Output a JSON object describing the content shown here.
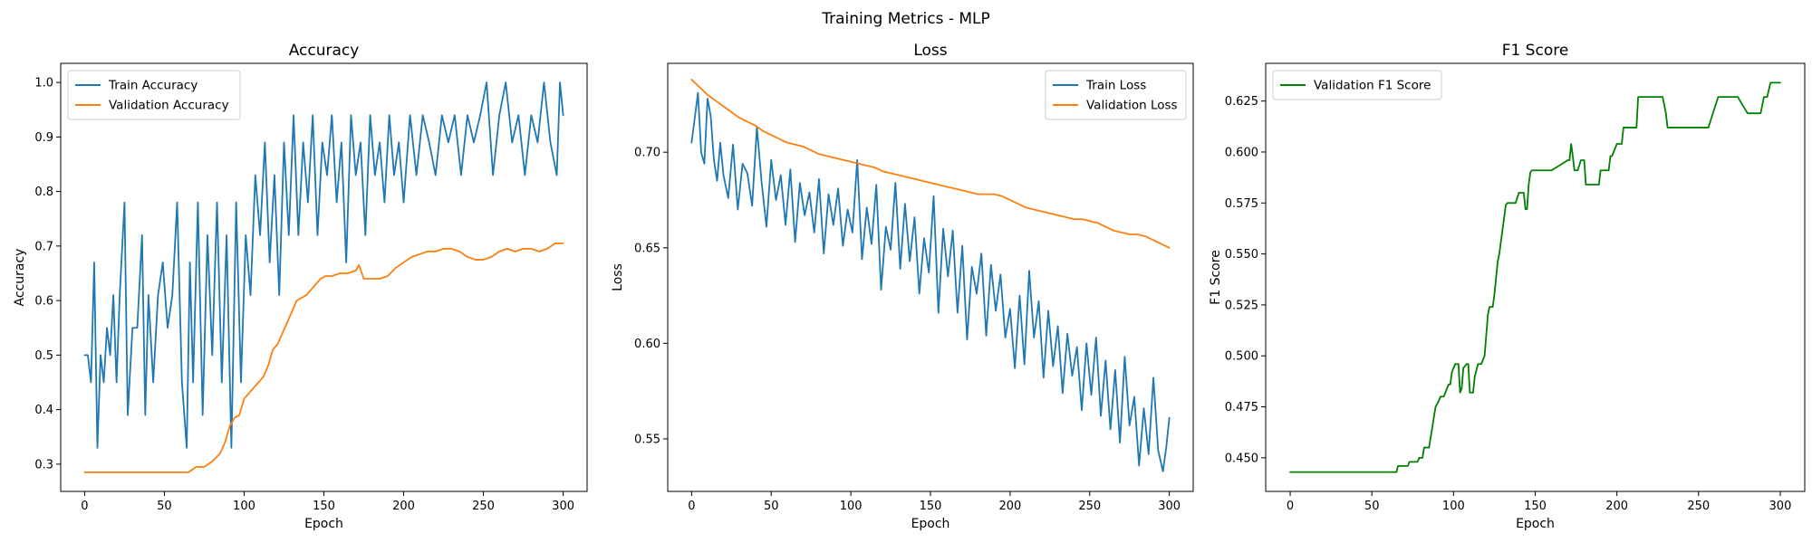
{
  "figure": {
    "suptitle": "Training Metrics - MLP"
  },
  "chart_data": [
    {
      "type": "line",
      "title": "Accuracy",
      "xlabel": "Epoch",
      "ylabel": "Accuracy",
      "xlim": [
        -15,
        315
      ],
      "ylim": [
        0.25,
        1.035
      ],
      "xticks": [
        0,
        50,
        100,
        150,
        200,
        250,
        300
      ],
      "yticks": [
        0.3,
        0.4,
        0.5,
        0.6,
        0.7,
        0.8,
        0.9,
        1.0
      ],
      "ytick_labels": [
        "0.3",
        "0.4",
        "0.5",
        "0.6",
        "0.7",
        "0.8",
        "0.9",
        "1.0"
      ],
      "legend_loc": "upper left",
      "series": [
        {
          "name": "Train Accuracy",
          "color": "#1f77b4",
          "x": [
            0,
            2,
            4,
            6,
            8,
            10,
            12,
            14,
            16,
            18,
            20,
            22,
            25,
            27,
            30,
            33,
            36,
            38,
            40,
            43,
            46,
            49,
            52,
            55,
            58,
            61,
            64,
            66,
            68,
            71,
            74,
            77,
            80,
            83,
            86,
            89,
            92,
            95,
            98,
            101,
            104,
            107,
            110,
            113,
            116,
            119,
            122,
            125,
            128,
            131,
            134,
            137,
            140,
            143,
            146,
            149,
            152,
            155,
            158,
            161,
            164,
            167,
            170,
            173,
            176,
            179,
            182,
            185,
            188,
            191,
            194,
            197,
            200,
            204,
            208,
            212,
            216,
            220,
            224,
            228,
            232,
            236,
            240,
            244,
            248,
            252,
            256,
            260,
            264,
            268,
            272,
            276,
            280,
            284,
            288,
            292,
            296,
            298,
            300
          ],
          "y": [
            0.5,
            0.5,
            0.45,
            0.67,
            0.33,
            0.5,
            0.45,
            0.55,
            0.5,
            0.61,
            0.45,
            0.61,
            0.78,
            0.39,
            0.55,
            0.55,
            0.72,
            0.39,
            0.61,
            0.45,
            0.61,
            0.67,
            0.55,
            0.61,
            0.78,
            0.45,
            0.33,
            0.67,
            0.45,
            0.78,
            0.39,
            0.72,
            0.5,
            0.78,
            0.45,
            0.72,
            0.33,
            0.78,
            0.45,
            0.72,
            0.61,
            0.83,
            0.72,
            0.89,
            0.67,
            0.83,
            0.61,
            0.89,
            0.72,
            0.94,
            0.72,
            0.89,
            0.78,
            0.94,
            0.72,
            0.89,
            0.83,
            0.94,
            0.78,
            0.89,
            0.67,
            0.94,
            0.83,
            0.89,
            0.72,
            0.94,
            0.83,
            0.89,
            0.78,
            0.94,
            0.83,
            0.89,
            0.78,
            0.94,
            0.83,
            0.94,
            0.89,
            0.83,
            0.94,
            0.89,
            0.94,
            0.83,
            0.94,
            0.89,
            0.94,
            1.0,
            0.83,
            0.94,
            1.0,
            0.89,
            0.94,
            0.83,
            0.94,
            0.89,
            1.0,
            0.89,
            0.83,
            1.0,
            0.94
          ]
        },
        {
          "name": "Validation Accuracy",
          "color": "#ff7f0e",
          "x": [
            0,
            65,
            70,
            75,
            80,
            85,
            88,
            91,
            94,
            97,
            100,
            103,
            106,
            109,
            112,
            115,
            118,
            121,
            124,
            127,
            130,
            133,
            136,
            139,
            142,
            145,
            148,
            151,
            155,
            160,
            165,
            170,
            172,
            175,
            180,
            185,
            190,
            195,
            200,
            205,
            210,
            215,
            220,
            225,
            230,
            235,
            240,
            245,
            250,
            255,
            260,
            265,
            270,
            275,
            280,
            285,
            290,
            295,
            300
          ],
          "y": [
            0.285,
            0.285,
            0.295,
            0.295,
            0.305,
            0.32,
            0.34,
            0.37,
            0.385,
            0.39,
            0.42,
            0.43,
            0.44,
            0.45,
            0.46,
            0.48,
            0.51,
            0.52,
            0.54,
            0.56,
            0.58,
            0.6,
            0.605,
            0.61,
            0.62,
            0.63,
            0.64,
            0.645,
            0.645,
            0.65,
            0.65,
            0.655,
            0.665,
            0.64,
            0.64,
            0.64,
            0.645,
            0.66,
            0.67,
            0.68,
            0.685,
            0.69,
            0.69,
            0.695,
            0.695,
            0.69,
            0.68,
            0.675,
            0.675,
            0.68,
            0.69,
            0.695,
            0.69,
            0.695,
            0.695,
            0.69,
            0.695,
            0.705,
            0.705
          ]
        }
      ]
    },
    {
      "type": "line",
      "title": "Loss",
      "xlabel": "Epoch",
      "ylabel": "Loss",
      "xlim": [
        -15,
        315
      ],
      "ylim": [
        0.5225,
        0.7465
      ],
      "xticks": [
        0,
        50,
        100,
        150,
        200,
        250,
        300
      ],
      "yticks": [
        0.55,
        0.6,
        0.65,
        0.7
      ],
      "ytick_labels": [
        "0.55",
        "0.60",
        "0.65",
        "0.70"
      ],
      "legend_loc": "upper right",
      "series": [
        {
          "name": "Train Loss",
          "color": "#1f77b4",
          "x": [
            0,
            2,
            4,
            6,
            8,
            10,
            12,
            14,
            16,
            18,
            20,
            23,
            26,
            29,
            32,
            35,
            38,
            41,
            44,
            47,
            50,
            53,
            56,
            59,
            62,
            65,
            68,
            71,
            74,
            77,
            80,
            83,
            86,
            89,
            92,
            95,
            98,
            101,
            104,
            107,
            110,
            113,
            116,
            119,
            122,
            125,
            128,
            131,
            134,
            137,
            140,
            143,
            146,
            149,
            152,
            155,
            158,
            161,
            164,
            167,
            170,
            173,
            176,
            179,
            182,
            185,
            188,
            191,
            194,
            197,
            200,
            203,
            206,
            209,
            212,
            215,
            218,
            221,
            224,
            227,
            230,
            233,
            236,
            239,
            242,
            245,
            248,
            251,
            254,
            257,
            260,
            263,
            266,
            269,
            272,
            275,
            278,
            281,
            284,
            287,
            290,
            293,
            296,
            298,
            300
          ],
          "y": [
            0.705,
            0.718,
            0.731,
            0.7,
            0.694,
            0.728,
            0.719,
            0.696,
            0.685,
            0.705,
            0.688,
            0.676,
            0.704,
            0.67,
            0.694,
            0.689,
            0.672,
            0.713,
            0.684,
            0.661,
            0.696,
            0.675,
            0.688,
            0.662,
            0.691,
            0.653,
            0.684,
            0.667,
            0.679,
            0.658,
            0.686,
            0.647,
            0.678,
            0.662,
            0.681,
            0.651,
            0.67,
            0.658,
            0.696,
            0.644,
            0.671,
            0.652,
            0.683,
            0.628,
            0.661,
            0.649,
            0.684,
            0.639,
            0.673,
            0.643,
            0.666,
            0.626,
            0.655,
            0.637,
            0.677,
            0.616,
            0.66,
            0.635,
            0.659,
            0.616,
            0.651,
            0.602,
            0.64,
            0.626,
            0.647,
            0.604,
            0.641,
            0.617,
            0.636,
            0.603,
            0.618,
            0.587,
            0.625,
            0.589,
            0.638,
            0.603,
            0.622,
            0.582,
            0.617,
            0.588,
            0.609,
            0.574,
            0.605,
            0.583,
            0.598,
            0.565,
            0.6,
            0.573,
            0.603,
            0.562,
            0.591,
            0.555,
            0.586,
            0.548,
            0.593,
            0.557,
            0.572,
            0.536,
            0.566,
            0.542,
            0.582,
            0.544,
            0.533,
            0.545,
            0.561
          ]
        },
        {
          "name": "Validation Loss",
          "color": "#ff7f0e",
          "x": [
            0,
            5,
            10,
            15,
            20,
            25,
            30,
            35,
            40,
            45,
            50,
            55,
            60,
            65,
            70,
            75,
            80,
            85,
            90,
            95,
            100,
            105,
            110,
            115,
            120,
            125,
            130,
            135,
            140,
            145,
            150,
            155,
            160,
            165,
            170,
            175,
            180,
            185,
            190,
            195,
            200,
            205,
            210,
            215,
            220,
            225,
            230,
            235,
            240,
            245,
            250,
            255,
            260,
            265,
            270,
            275,
            280,
            285,
            290,
            295,
            300
          ],
          "y": [
            0.738,
            0.734,
            0.73,
            0.727,
            0.724,
            0.721,
            0.718,
            0.716,
            0.714,
            0.711,
            0.709,
            0.707,
            0.705,
            0.704,
            0.703,
            0.701,
            0.699,
            0.698,
            0.697,
            0.696,
            0.695,
            0.694,
            0.693,
            0.692,
            0.69,
            0.689,
            0.688,
            0.687,
            0.686,
            0.685,
            0.684,
            0.683,
            0.682,
            0.681,
            0.68,
            0.679,
            0.678,
            0.678,
            0.678,
            0.677,
            0.675,
            0.673,
            0.671,
            0.67,
            0.669,
            0.668,
            0.667,
            0.666,
            0.665,
            0.665,
            0.664,
            0.663,
            0.661,
            0.659,
            0.658,
            0.657,
            0.657,
            0.656,
            0.654,
            0.652,
            0.65
          ]
        }
      ]
    },
    {
      "type": "line",
      "title": "F1 Score",
      "xlabel": "Epoch",
      "ylabel": "F1 Score",
      "xlim": [
        -15,
        315
      ],
      "ylim": [
        0.4335,
        0.6435
      ],
      "xticks": [
        0,
        50,
        100,
        150,
        200,
        250,
        300
      ],
      "yticks": [
        0.45,
        0.475,
        0.5,
        0.525,
        0.55,
        0.575,
        0.6,
        0.625
      ],
      "ytick_labels": [
        "0.450",
        "0.475",
        "0.500",
        "0.525",
        "0.550",
        "0.575",
        "0.600",
        "0.625"
      ],
      "legend_loc": "upper left",
      "series": [
        {
          "name": "Validation F1 Score",
          "color": "#008000",
          "x": [
            0,
            65,
            66,
            72,
            73,
            78,
            79,
            81,
            82,
            85,
            86,
            88,
            89,
            91,
            92,
            93,
            94,
            95,
            96,
            97,
            98,
            99,
            101,
            103,
            104,
            105,
            106,
            108,
            109,
            110,
            112,
            113,
            115,
            117,
            119,
            121,
            122,
            124,
            125,
            126,
            127,
            128,
            129,
            130,
            131,
            132,
            133,
            134,
            135,
            138,
            140,
            141,
            142,
            143,
            144,
            145,
            146,
            147,
            148,
            152,
            153,
            160,
            170,
            171,
            172,
            173,
            174,
            176,
            178,
            180,
            181,
            187,
            188,
            189,
            190,
            195,
            196,
            197,
            200,
            203,
            204,
            208,
            210,
            212,
            213,
            222,
            224,
            228,
            230,
            231,
            233,
            234,
            236,
            238,
            240,
            246,
            248,
            250,
            252,
            254,
            256,
            262,
            264,
            272,
            274,
            280,
            281,
            288,
            290,
            292,
            294,
            300
          ],
          "y": [
            0.443,
            0.443,
            0.446,
            0.446,
            0.448,
            0.448,
            0.45,
            0.45,
            0.455,
            0.455,
            0.46,
            0.47,
            0.475,
            0.478,
            0.48,
            0.48,
            0.48,
            0.482,
            0.484,
            0.486,
            0.486,
            0.492,
            0.496,
            0.496,
            0.482,
            0.484,
            0.494,
            0.496,
            0.496,
            0.482,
            0.482,
            0.49,
            0.496,
            0.496,
            0.5,
            0.52,
            0.524,
            0.524,
            0.53,
            0.538,
            0.546,
            0.55,
            0.556,
            0.562,
            0.568,
            0.574,
            0.575,
            0.575,
            0.575,
            0.575,
            0.58,
            0.58,
            0.58,
            0.58,
            0.572,
            0.572,
            0.584,
            0.59,
            0.591,
            0.591,
            0.591,
            0.591,
            0.596,
            0.596,
            0.604,
            0.598,
            0.591,
            0.591,
            0.596,
            0.596,
            0.584,
            0.584,
            0.584,
            0.584,
            0.591,
            0.591,
            0.598,
            0.598,
            0.604,
            0.604,
            0.612,
            0.612,
            0.612,
            0.612,
            0.627,
            0.627,
            0.627,
            0.627,
            0.619,
            0.612,
            0.612,
            0.612,
            0.612,
            0.612,
            0.612,
            0.612,
            0.612,
            0.612,
            0.612,
            0.612,
            0.612,
            0.627,
            0.627,
            0.627,
            0.627,
            0.619,
            0.619,
            0.619,
            0.627,
            0.627,
            0.634,
            0.634
          ]
        }
      ]
    }
  ]
}
